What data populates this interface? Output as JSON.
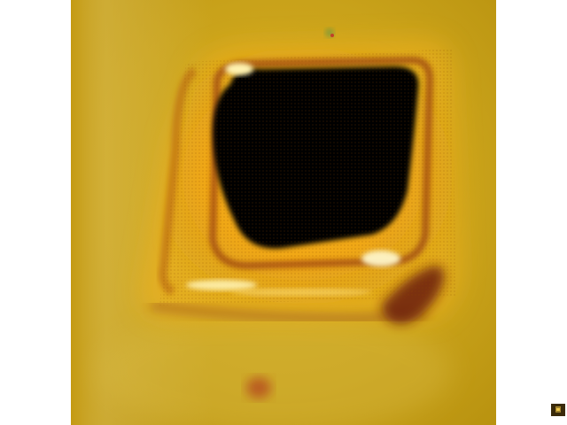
{
  "image": {
    "colors": {
      "background": "#c9a21a",
      "background_light": "#d9bb47",
      "frame_glow": "#f0b023",
      "frame_highlight": "#fff2b0",
      "frame_shadow": "#7a2a10",
      "hole": "#050200",
      "spot": "#b3421e"
    },
    "corner_mark_icon": "corner-mark-icon"
  }
}
